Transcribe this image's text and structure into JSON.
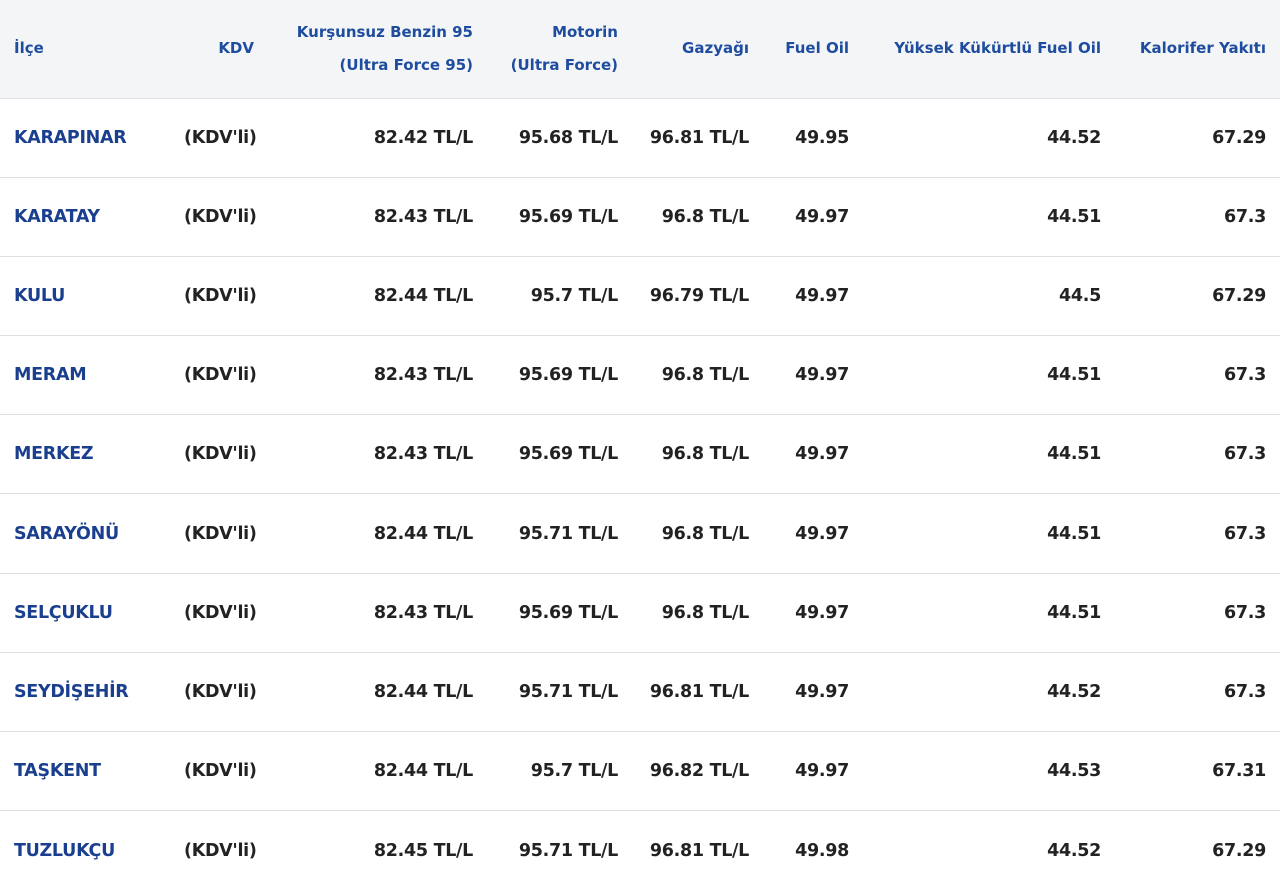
{
  "table": {
    "headers": [
      [
        "İlçe"
      ],
      [
        "KDV"
      ],
      [
        "Kurşunsuz Benzin 95",
        "(Ultra Force 95)"
      ],
      [
        "Motorin",
        "(Ultra Force)"
      ],
      [
        "Gazyağı"
      ],
      [
        "Fuel Oil"
      ],
      [
        "Yüksek Kükürtlü Fuel Oil"
      ],
      [
        "Kalorifer Yakıtı"
      ]
    ],
    "rows": [
      [
        "KARAPINAR",
        "(KDV'li)",
        "82.42 TL/L",
        "95.68 TL/L",
        "96.81 TL/L",
        "49.95",
        "44.52",
        "67.29"
      ],
      [
        "KARATAY",
        "(KDV'li)",
        "82.43 TL/L",
        "95.69 TL/L",
        "96.8 TL/L",
        "49.97",
        "44.51",
        "67.3"
      ],
      [
        "KULU",
        "(KDV'li)",
        "82.44 TL/L",
        "95.7 TL/L",
        "96.79 TL/L",
        "49.97",
        "44.5",
        "67.29"
      ],
      [
        "MERAM",
        "(KDV'li)",
        "82.43 TL/L",
        "95.69 TL/L",
        "96.8 TL/L",
        "49.97",
        "44.51",
        "67.3"
      ],
      [
        "MERKEZ",
        "(KDV'li)",
        "82.43 TL/L",
        "95.69 TL/L",
        "96.8 TL/L",
        "49.97",
        "44.51",
        "67.3"
      ],
      [
        "SARAYÖNÜ",
        "(KDV'li)",
        "82.44 TL/L",
        "95.71 TL/L",
        "96.8 TL/L",
        "49.97",
        "44.51",
        "67.3"
      ],
      [
        "SELÇUKLU",
        "(KDV'li)",
        "82.43 TL/L",
        "95.69 TL/L",
        "96.8 TL/L",
        "49.97",
        "44.51",
        "67.3"
      ],
      [
        "SEYDİŞEHİR",
        "(KDV'li)",
        "82.44 TL/L",
        "95.71 TL/L",
        "96.81 TL/L",
        "49.97",
        "44.52",
        "67.3"
      ],
      [
        "TAŞKENT",
        "(KDV'li)",
        "82.44 TL/L",
        "95.7 TL/L",
        "96.82 TL/L",
        "49.97",
        "44.53",
        "67.31"
      ],
      [
        "TUZLUKÇU",
        "(KDV'li)",
        "82.45 TL/L",
        "95.71 TL/L",
        "96.81 TL/L",
        "49.98",
        "44.52",
        "67.29"
      ]
    ]
  }
}
